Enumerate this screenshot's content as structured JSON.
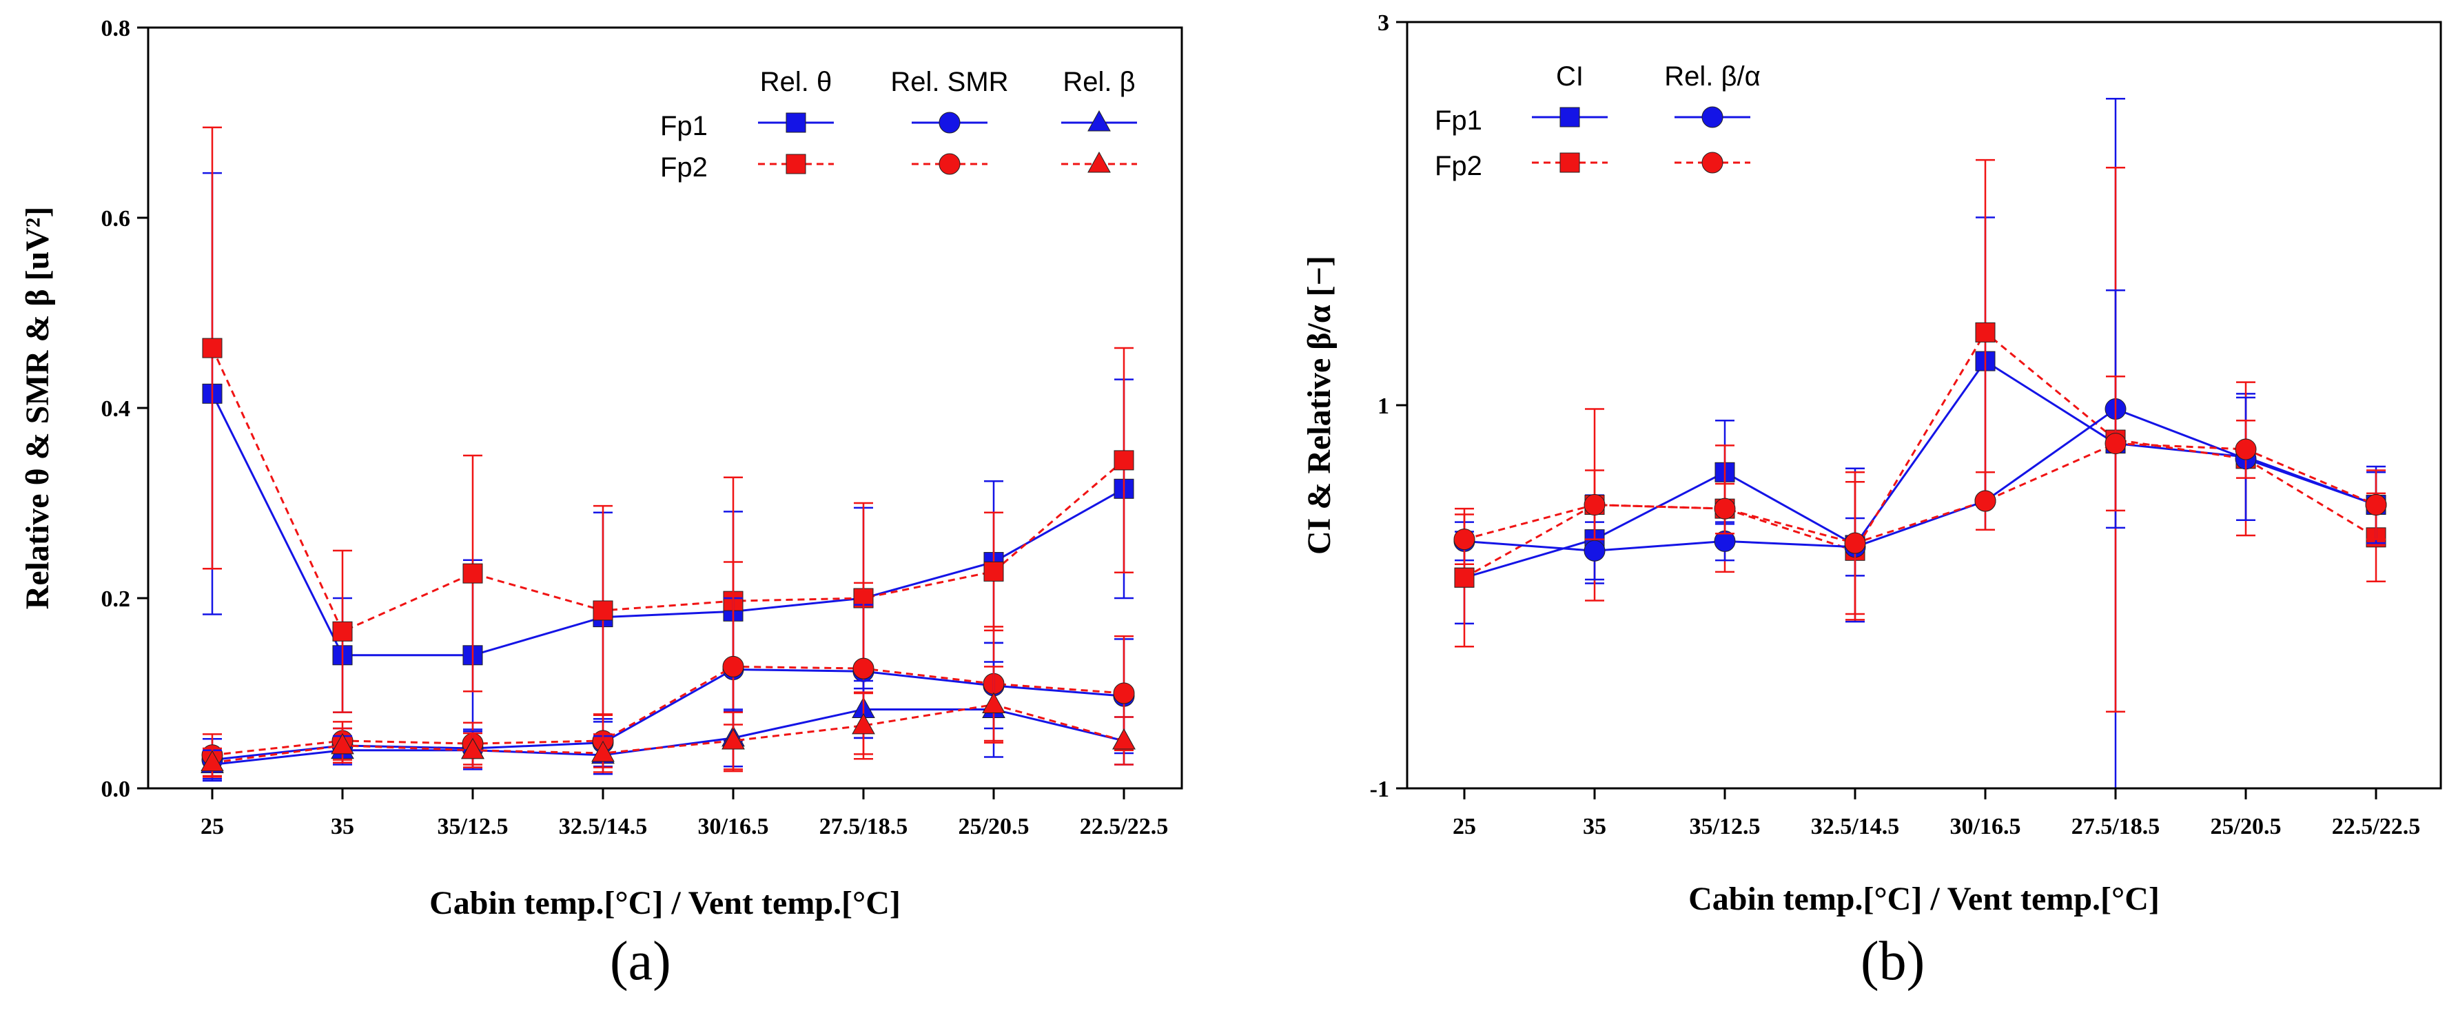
{
  "figure": {
    "panel_a_label": "(a)",
    "panel_b_label": "(b)"
  },
  "colors": {
    "fp1": "#1414e6",
    "fp2": "#f01414"
  },
  "chart_data": [
    {
      "id": "a",
      "type": "line",
      "categories": [
        "25",
        "35",
        "35/12.5",
        "32.5/14.5",
        "30/16.5",
        "27.5/18.5",
        "25/20.5",
        "22.5/22.5"
      ],
      "xlabel": "Cabin temp.[°C] / Vent temp.[°C]",
      "ylabel": "Relative θ & SMR & β [uV²]",
      "ylim": [
        0,
        0.8
      ],
      "yticks": [
        0,
        0.2,
        0.4,
        0.6,
        0.8
      ],
      "ytick_labels": [
        "0.0",
        "0.2",
        "0.4",
        "0.6",
        "0.8"
      ],
      "legend_position": "top-right",
      "legend_columns": [
        "Rel. θ",
        "Rel. SMR",
        "Rel. β"
      ],
      "legend_rows": [
        "Fp1",
        "Fp2"
      ],
      "series": [
        {
          "name": "Fp1 Rel. θ",
          "channel": "Fp1",
          "marker": "square",
          "values": [
            0.415,
            0.14,
            0.14,
            0.18,
            0.186,
            0.2,
            0.238,
            0.315
          ],
          "err": [
            0.232,
            0.06,
            0.1,
            0.11,
            0.105,
            0.095,
            0.085,
            0.115
          ]
        },
        {
          "name": "Fp2 Rel. θ",
          "channel": "Fp2",
          "marker": "square",
          "values": [
            0.463,
            0.165,
            0.226,
            0.187,
            0.197,
            0.2,
            0.228,
            0.345
          ],
          "err": [
            0.232,
            0.085,
            0.124,
            0.11,
            0.13,
            0.1,
            0.062,
            0.118
          ]
        },
        {
          "name": "Fp1 Rel. SMR",
          "channel": "Fp1",
          "marker": "circle",
          "values": [
            0.03,
            0.045,
            0.042,
            0.048,
            0.125,
            0.123,
            0.108,
            0.097
          ],
          "err": [
            0.022,
            0.018,
            0.02,
            0.025,
            0.075,
            0.07,
            0.045,
            0.06
          ]
        },
        {
          "name": "Fp2 Rel. SMR",
          "channel": "Fp2",
          "marker": "circle",
          "values": [
            0.035,
            0.05,
            0.047,
            0.05,
            0.128,
            0.126,
            0.11,
            0.1
          ],
          "err": [
            0.022,
            0.02,
            0.022,
            0.028,
            0.11,
            0.09,
            0.06,
            0.06
          ]
        },
        {
          "name": "Fp1 Rel. β",
          "channel": "Fp1",
          "marker": "triangle",
          "values": [
            0.025,
            0.04,
            0.04,
            0.035,
            0.053,
            0.083,
            0.083,
            0.05
          ],
          "err": [
            0.015,
            0.015,
            0.02,
            0.02,
            0.03,
            0.03,
            0.05,
            0.025
          ]
        },
        {
          "name": "Fp2 Rel. β",
          "channel": "Fp2",
          "marker": "triangle",
          "values": [
            0.027,
            0.045,
            0.04,
            0.037,
            0.05,
            0.066,
            0.088,
            0.05
          ],
          "err": [
            0.015,
            0.018,
            0.018,
            0.02,
            0.03,
            0.035,
            0.04,
            0.025
          ]
        }
      ]
    },
    {
      "id": "b",
      "type": "line",
      "categories": [
        "25",
        "35",
        "35/12.5",
        "32.5/14.5",
        "30/16.5",
        "27.5/18.5",
        "25/20.5",
        "22.5/22.5"
      ],
      "xlabel": "Cabin temp.[°C] / Vent temp.[°C]",
      "ylabel": "CI & Relative β/α [−]",
      "ylim": [
        -1,
        3
      ],
      "yticks": [
        -1,
        1,
        3
      ],
      "ytick_labels": [
        "-1",
        "1",
        "3"
      ],
      "legend_position": "top-left",
      "legend_columns": [
        "CI",
        "Rel. β/α"
      ],
      "legend_rows": [
        "Fp1",
        "Fp2"
      ],
      "series": [
        {
          "name": "Fp1 CI",
          "channel": "Fp1",
          "marker": "square",
          "values": [
            0.1,
            0.3,
            0.65,
            0.27,
            1.23,
            0.8,
            0.73,
            0.48
          ],
          "err": [
            0.24,
            0.23,
            0.27,
            0.4,
            0.75,
            1.8,
            0.33,
            0.17
          ]
        },
        {
          "name": "Fp2 CI",
          "channel": "Fp2",
          "marker": "square",
          "values": [
            0.1,
            0.48,
            0.46,
            0.24,
            1.38,
            0.82,
            0.72,
            0.31
          ],
          "err": [
            0.36,
            0.5,
            0.33,
            0.36,
            0.9,
            1.42,
            0.4,
            0.23
          ]
        },
        {
          "name": "Fp1 Rel. β/α",
          "channel": "Fp1",
          "marker": "circle",
          "values": [
            0.29,
            0.24,
            0.29,
            0.26,
            0.5,
            0.98,
            0.72,
            0.48
          ],
          "err": [
            0.1,
            0.15,
            0.1,
            0.15,
            0.15,
            0.62,
            0.32,
            0.2
          ]
        },
        {
          "name": "Fp2 Rel. β/α",
          "channel": "Fp2",
          "marker": "circle",
          "values": [
            0.3,
            0.48,
            0.46,
            0.28,
            0.5,
            0.8,
            0.77,
            0.48
          ],
          "err": [
            0.13,
            0.18,
            0.13,
            0.37,
            0.15,
            0.35,
            0.15,
            0.18
          ]
        }
      ]
    }
  ]
}
